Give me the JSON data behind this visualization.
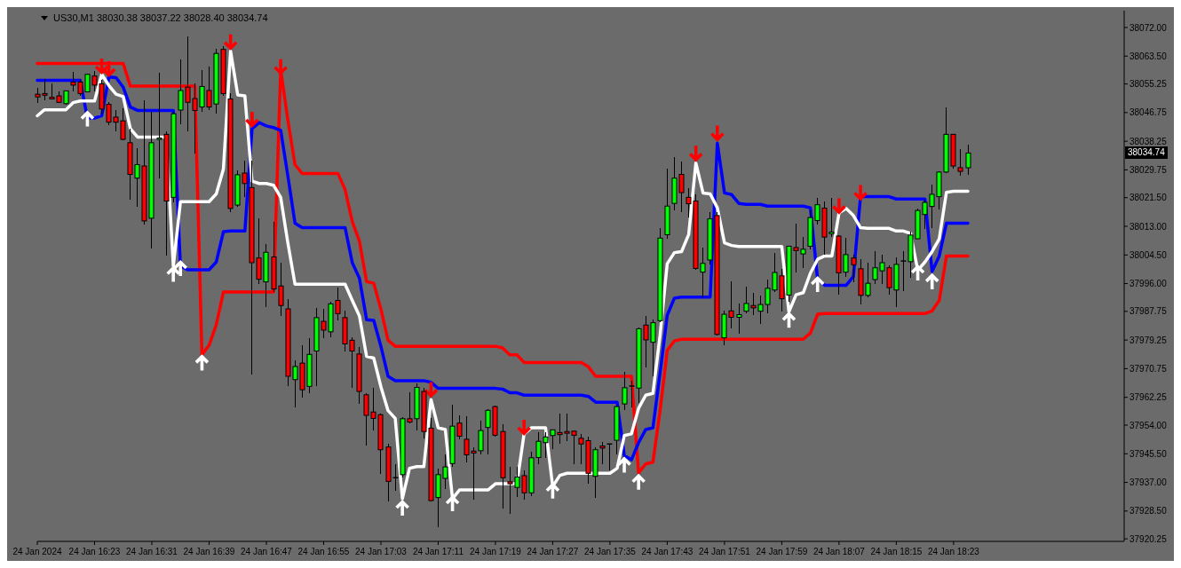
{
  "chart_data": {
    "type": "candlestick",
    "title": "US30,M1 38030.38 38037.22 38028.40 38034.74",
    "categories": [
      "24 Jan 2024",
      null,
      null,
      null,
      null,
      null,
      null,
      null,
      "24 Jan 16:23",
      null,
      null,
      null,
      null,
      null,
      null,
      null,
      "24 Jan 16:31",
      null,
      null,
      null,
      null,
      null,
      null,
      null,
      "24 Jan 16:39",
      null,
      null,
      null,
      null,
      null,
      null,
      null,
      "24 Jan 16:47",
      null,
      null,
      null,
      null,
      null,
      null,
      null,
      "24 Jan 16:55",
      null,
      null,
      null,
      null,
      null,
      null,
      null,
      "24 Jan 17:03",
      null,
      null,
      null,
      null,
      null,
      null,
      null,
      "24 Jan 17:11",
      null,
      null,
      null,
      null,
      null,
      null,
      null,
      "24 Jan 17:19",
      null,
      null,
      null,
      null,
      null,
      null,
      null,
      "24 Jan 17:27",
      null,
      null,
      null,
      null,
      null,
      null,
      null,
      "24 Jan 17:35",
      null,
      null,
      null,
      null,
      null,
      null,
      null,
      "24 Jan 17:43",
      null,
      null,
      null,
      null,
      null,
      null,
      null,
      "24 Jan 17:51",
      null,
      null,
      null,
      null,
      null,
      null,
      null,
      "24 Jan 17:59",
      null,
      null,
      null,
      null,
      null,
      null,
      null,
      "24 Jan 18:07",
      null,
      null,
      null,
      null,
      null,
      null,
      null,
      "24 Jan 18:15",
      null,
      null,
      null,
      null,
      null,
      null,
      null,
      "24 Jan 18:23",
      null,
      null
    ],
    "ohlc": [
      [
        38052.2,
        38054.2,
        38049.6,
        38051.4
      ],
      [
        38052.4,
        38056.8,
        38050.3,
        38051.9
      ],
      [
        38051.3,
        38055.4,
        38050.6,
        38050.8
      ],
      [
        38051.7,
        38053.0,
        38049.6,
        38049.8
      ],
      [
        38049.4,
        38053.4,
        38049.2,
        38053.2
      ],
      [
        38055.8,
        38058.8,
        38053.0,
        38054.9
      ],
      [
        38055.8,
        38056.8,
        38051.7,
        38052.4
      ],
      [
        38052.9,
        38058.3,
        38052.7,
        38058.1
      ],
      [
        38057.6,
        38059.0,
        38053.0,
        38054.9
      ],
      [
        38055.3,
        38056.4,
        38046.5,
        38047.8
      ],
      [
        38049.2,
        38050.0,
        38043.0,
        38043.9
      ],
      [
        38045.4,
        38047.5,
        38041.3,
        38043.9
      ],
      [
        38044.3,
        38047.9,
        38038.6,
        38038.8
      ],
      [
        38037.8,
        38042.0,
        38020.9,
        38028.4
      ],
      [
        38027.3,
        38036.3,
        38018.8,
        38031.3
      ],
      [
        38030.9,
        38050.3,
        38013.5,
        38014.6
      ],
      [
        38015.4,
        38047.1,
        38006.4,
        38037.8
      ],
      [
        38038.8,
        38058.6,
        38027.1,
        38039.2
      ],
      [
        38040.3,
        38041.1,
        38004.4,
        38020.5
      ],
      [
        38021.6,
        38047.0,
        38020.0,
        38046.4
      ],
      [
        38047.5,
        38062.4,
        38043.2,
        38053.3
      ],
      [
        38054.3,
        38069.4,
        38041.3,
        38049.8
      ],
      [
        38050.9,
        38055.5,
        38034.5,
        38047.4
      ],
      [
        38048.4,
        38059.4,
        38047.0,
        38054.5
      ],
      [
        38053.3,
        38060.4,
        38047.4,
        38048.4
      ],
      [
        38049.3,
        38065.8,
        38046.4,
        38064.3
      ],
      [
        38065.5,
        38066.5,
        38051.6,
        38052.4
      ],
      [
        38050.8,
        38052.6,
        38017.3,
        38018.3
      ],
      [
        38019.3,
        38029.6,
        38018.9,
        38028.3
      ],
      [
        38028.8,
        38032.5,
        38021.8,
        38025.7
      ],
      [
        38024.5,
        38032.5,
        37969.1,
        38002.2
      ],
      [
        38003.6,
        38015.4,
        37996.0,
        37997.3
      ],
      [
        37996.5,
        38007.6,
        37989.0,
        38005.3
      ],
      [
        38003.9,
        38014.4,
        37993.5,
        37994.4
      ],
      [
        37995.3,
        38002.2,
        37986.5,
        37989.5
      ],
      [
        37988.5,
        37991.5,
        37965.5,
        37968.5
      ],
      [
        37967.5,
        37973.3,
        37959.2,
        37971.4
      ],
      [
        37972.4,
        37977.8,
        37962.1,
        37964.5
      ],
      [
        37965.5,
        37979.7,
        37963.6,
        37975.0
      ],
      [
        37976.0,
        37988.7,
        37965.5,
        37985.9
      ],
      [
        37984.8,
        37988.5,
        37979.7,
        37982.2
      ],
      [
        37981.7,
        37990.7,
        37980.2,
        37990.0
      ],
      [
        37991.0,
        37994.9,
        37985.1,
        37987.1
      ],
      [
        37985.9,
        37988.0,
        37975.8,
        37978.1
      ],
      [
        37979.2,
        37980.0,
        37965.0,
        37976.0
      ],
      [
        37975.1,
        37977.3,
        37960.3,
        37964.0
      ],
      [
        37963.0,
        37963.5,
        37948.0,
        37956.9
      ],
      [
        37957.9,
        37965.0,
        37952.3,
        37956.0
      ],
      [
        37957.1,
        37957.5,
        37939.5,
        37946.7
      ],
      [
        37947.5,
        37948.4,
        37931.4,
        37937.3
      ],
      [
        37938.4,
        37942.5,
        37934.5,
        37938.4
      ],
      [
        37939.3,
        37956.5,
        37938.5,
        37955.9
      ],
      [
        37955.9,
        37963.7,
        37954.4,
        37954.9
      ],
      [
        37955.9,
        37966.3,
        37952.3,
        37965.2
      ],
      [
        37964.0,
        37965.0,
        37950.1,
        37952.1
      ],
      [
        37953.1,
        37956.0,
        37931.4,
        37931.6
      ],
      [
        37932.5,
        37941.2,
        37923.6,
        37939.3
      ],
      [
        37938.2,
        37945.2,
        37935.0,
        37941.6
      ],
      [
        37942.6,
        37960.1,
        37941.6,
        37953.7
      ],
      [
        37954.6,
        37957.0,
        37949.7,
        37950.7
      ],
      [
        37949.8,
        37956.7,
        37942.9,
        37945.2
      ],
      [
        37946.3,
        37947.5,
        37931.8,
        37945.7
      ],
      [
        37946.4,
        37955.2,
        37945.4,
        37952.4
      ],
      [
        37953.3,
        37958.7,
        37945.4,
        37958.4
      ],
      [
        37959.5,
        37959.8,
        37950.5,
        37951.0
      ],
      [
        37952.1,
        37954.2,
        37929.3,
        37938.4
      ],
      [
        37937.2,
        37941.6,
        37927.6,
        37936.6
      ],
      [
        37935.5,
        37941.6,
        37932.7,
        37938.6
      ],
      [
        37939.0,
        37940.7,
        37931.8,
        37933.9
      ],
      [
        37933.9,
        37946.0,
        37932.9,
        37944.3
      ],
      [
        37944.4,
        37951.9,
        37942.5,
        37949.2
      ],
      [
        37948.8,
        37951.9,
        37944.3,
        37950.5
      ],
      [
        37950.9,
        37952.8,
        37946.8,
        37952.6
      ],
      [
        37951.8,
        37957.4,
        37948.4,
        37951.2
      ],
      [
        37952.1,
        37957.4,
        37949.2,
        37951.6
      ],
      [
        37952.2,
        37952.5,
        37942.5,
        37951.0
      ],
      [
        37950.1,
        37951.4,
        37942.5,
        37948.4
      ],
      [
        37949.4,
        37950.7,
        37936.6,
        37939.7
      ],
      [
        37938.8,
        37947.5,
        37932.3,
        37946.7
      ],
      [
        37947.8,
        37949.1,
        37942.3,
        37947.2
      ],
      [
        37948.4,
        37948.6,
        37940.6,
        37948.4
      ],
      [
        37949.5,
        37959.7,
        37945.4,
        37959.5
      ],
      [
        37960.3,
        37969.8,
        37958.6,
        37965.1
      ],
      [
        37965.6,
        37967.1,
        37959.4,
        37965.6
      ],
      [
        37965.0,
        37983.0,
        37960.7,
        37982.6
      ],
      [
        37983.7,
        37986.3,
        37971.2,
        37979.3
      ],
      [
        37978.6,
        37985.3,
        37968.4,
        37984.4
      ],
      [
        37985.0,
        38012.6,
        37984.6,
        38009.5
      ],
      [
        38010.5,
        38030.2,
        38009.4,
        38019.0
      ],
      [
        38019.8,
        38033.5,
        38017.7,
        38027.3
      ],
      [
        38028.4,
        38032.2,
        38017.3,
        38023.0
      ],
      [
        38021.6,
        38024.3,
        38015.6,
        38019.7
      ],
      [
        38020.5,
        38022.6,
        38000.2,
        38000.5
      ],
      [
        37999.4,
        38006.7,
        37991.8,
        38002.0
      ],
      [
        38003.0,
        38017.1,
        38001.6,
        38015.2
      ],
      [
        38016.2,
        38017.3,
        37980.7,
        37980.9
      ],
      [
        37979.9,
        37987.9,
        37977.7,
        37986.9
      ],
      [
        37987.9,
        37996.7,
        37982.8,
        37986.0
      ],
      [
        37986.0,
        37990.1,
        37981.2,
        37986.8
      ],
      [
        37987.8,
        37995.2,
        37987.1,
        37990.1
      ],
      [
        37989.5,
        37993.2,
        37986.7,
        37988.8
      ],
      [
        37987.8,
        37992.4,
        37984.1,
        37989.8
      ],
      [
        37989.8,
        37997.3,
        37987.1,
        37994.6
      ],
      [
        37994.1,
        38005.2,
        37993.5,
        37999.3
      ],
      [
        37998.3,
        38000.3,
        37987.7,
        37991.5
      ],
      [
        37992.6,
        38007.3,
        37990.7,
        38007.1
      ],
      [
        38006.7,
        38013.9,
        37999.4,
        38005.8
      ],
      [
        38004.8,
        38009.9,
        38000.5,
        38006.2
      ],
      [
        38007.1,
        38017.7,
        38006.1,
        38015.6
      ],
      [
        38014.7,
        38021.4,
        38013.5,
        38019.4
      ],
      [
        38018.4,
        38020.3,
        38004.5,
        38009.8
      ],
      [
        38010.8,
        38021.4,
        38009.9,
        38011.3
      ],
      [
        38010.1,
        38010.3,
        37992.8,
        37999.2
      ],
      [
        37999.4,
        38009.5,
        37998.1,
        38004.6
      ],
      [
        38003.6,
        38004.7,
        37996.3,
        38001.6
      ],
      [
        38000.4,
        38003.3,
        37989.7,
        37992.5
      ],
      [
        37992.5,
        38002.3,
        37991.9,
        37996.1
      ],
      [
        37997.2,
        38005.5,
        37995.9,
        38000.7
      ],
      [
        37999.8,
        38004.7,
        37995.9,
        38002.2
      ],
      [
        38000.7,
        38001.3,
        37992.8,
        37994.8
      ],
      [
        37994.1,
        38003.9,
        37989.0,
        38001.7
      ],
      [
        38002.7,
        38005.5,
        37993.9,
        38002.7
      ],
      [
        38002.5,
        38011.5,
        37997.6,
        38010.4
      ],
      [
        38009.3,
        38018.3,
        38009.2,
        38017.7
      ],
      [
        38016.5,
        38020.9,
        38012.1,
        38020.1
      ],
      [
        38018.9,
        38025.3,
        38012.6,
        38022.5
      ],
      [
        38021.8,
        38029.3,
        38017.9,
        38029.1
      ],
      [
        38029.1,
        38048.2,
        38028.9,
        38040.3
      ],
      [
        38040.3,
        38040.4,
        38030.2,
        38030.9
      ],
      [
        38030.4,
        38035.9,
        38028.0,
        38029.3
      ],
      [
        38030.38,
        38037.22,
        38028.4,
        38034.74
      ]
    ],
    "colors": [
      "#ff0000",
      "#ff0000",
      "#ff0000",
      "#ff0000",
      "#00ff00",
      "#ff0000",
      "#ff0000",
      "#00ff00",
      "#ff0000",
      "#ff0000",
      "#ff0000",
      "#ff0000",
      "#ff0000",
      "#ff0000",
      "#00ff00",
      "#ff0000",
      "#00ff00",
      "#00ff00",
      "#ff0000",
      "#00ff00",
      "#00ff00",
      "#ff0000",
      "#ff0000",
      "#00ff00",
      "#ff0000",
      "#00ff00",
      "#ff0000",
      "#ff0000",
      "#00ff00",
      "#ff0000",
      "#ff0000",
      "#ff0000",
      "#00ff00",
      "#ff0000",
      "#ff0000",
      "#ff0000",
      "#00ff00",
      "#ff0000",
      "#00ff00",
      "#00ff00",
      "#ff0000",
      "#00ff00",
      "#ff0000",
      "#ff0000",
      "#ff0000",
      "#ff0000",
      "#ff0000",
      "#ff0000",
      "#ff0000",
      "#ff0000",
      "#000000",
      "#00ff00",
      "#ff0000",
      "#00ff00",
      "#ff0000",
      "#ff0000",
      "#00ff00",
      "#00ff00",
      "#00ff00",
      "#ff0000",
      "#ff0000",
      "#ff0000",
      "#00ff00",
      "#00ff00",
      "#ff0000",
      "#ff0000",
      "#ff0000",
      "#00ff00",
      "#ff0000",
      "#00ff00",
      "#00ff00",
      "#00ff00",
      "#00ff00",
      "#ff0000",
      "#ff0000",
      "#ff0000",
      "#ff0000",
      "#ff0000",
      "#00ff00",
      "#ff0000",
      "#000000",
      "#00ff00",
      "#00ff00",
      "#000000",
      "#00ff00",
      "#ff0000",
      "#00ff00",
      "#00ff00",
      "#00ff00",
      "#00ff00",
      "#ff0000",
      "#ff0000",
      "#ff0000",
      "#00ff00",
      "#00ff00",
      "#ff0000",
      "#00ff00",
      "#ff0000",
      "#00ff00",
      "#00ff00",
      "#ff0000",
      "#00ff00",
      "#00ff00",
      "#00ff00",
      "#ff0000",
      "#00ff00",
      "#ff0000",
      "#00ff00",
      "#00ff00",
      "#00ff00",
      "#ff0000",
      "#00ff00",
      "#ff0000",
      "#00ff00",
      "#ff0000",
      "#ff0000",
      "#00ff00",
      "#00ff00",
      "#00ff00",
      "#ff0000",
      "#00ff00",
      "#000000",
      "#00ff00",
      "#00ff00",
      "#00ff00",
      "#00ff00",
      "#00ff00",
      "#00ff00",
      "#ff0000",
      "#ff0000",
      "#00ff00"
    ],
    "series": [
      {
        "type": "line",
        "color": "#ff0000",
        "values": [
          38061.3,
          38061.3,
          38061.3,
          38061.3,
          38061.3,
          38061.3,
          38061.3,
          38061.3,
          38061.3,
          38061.3,
          38061.3,
          38061.3,
          38061.3,
          38054.6,
          38054.6,
          38054.6,
          38054.6,
          38054.6,
          38054.6,
          38054.6,
          38054.6,
          38054.6,
          38054.6,
          37974.9,
          37977.7,
          37983.8,
          37993.5,
          37993.5,
          37993.5,
          37993.5,
          37993.5,
          37993.5,
          37993.5,
          37993.5,
          38059.4,
          38044.6,
          38031.3,
          38028.7,
          38028.7,
          38028.7,
          38028.7,
          38028.7,
          38028.7,
          38023.9,
          38014.4,
          38008.6,
          37996.6,
          37996.1,
          37988.4,
          37979.2,
          37977.4,
          37977.4,
          37977.4,
          37977.4,
          37977.4,
          37977.4,
          37977.4,
          37977.4,
          37977.4,
          37977.4,
          37977.4,
          37977.4,
          37977.4,
          37977.4,
          37977.4,
          37976.9,
          37974.9,
          37974.9,
          37972.6,
          37972.6,
          37972.6,
          37972.6,
          37972.6,
          37972.6,
          37972.6,
          37972.6,
          37972.6,
          37971.3,
          37968.5,
          37968.5,
          37968.5,
          37968.5,
          37968.5,
          37968.5,
          37939.9,
          37942.5,
          37943.0,
          37958.3,
          37976.2,
          37979.0,
          37979.5,
          37979.5,
          37979.5,
          37979.5,
          37979.5,
          37979.5,
          37979.5,
          37979.5,
          37979.5,
          37979.5,
          37979.5,
          37979.5,
          37979.5,
          37979.5,
          37979.5,
          37979.5,
          37979.5,
          37979.5,
          37981.3,
          37986.9,
          37987.1,
          37987.1,
          37987.1,
          37987.1,
          37987.1,
          37987.1,
          37987.1,
          37987.1,
          37987.1,
          37987.1,
          37987.1,
          37987.1,
          37987.1,
          37987.1,
          37987.1,
          37987.9,
          37991.0,
          38004.2,
          38004.2,
          38004.2,
          38004.2
        ]
      },
      {
        "type": "line",
        "color": "#0000ff",
        "values": [
          38056.3,
          38056.3,
          38056.3,
          38056.3,
          38056.3,
          38056.3,
          38056.3,
          38045.1,
          38045.1,
          38045.8,
          38057.3,
          38057.1,
          38054.3,
          38048.4,
          38047.4,
          38047.4,
          38047.4,
          38047.4,
          38047.4,
          38047.4,
          38001.2,
          38000.1,
          38000.1,
          38000.1,
          38000.1,
          38002.4,
          38011.4,
          38011.6,
          38011.6,
          38011.6,
          38042.0,
          38043.8,
          38042.8,
          38042.3,
          38041.5,
          38028.0,
          38013.9,
          38012.6,
          38012.6,
          38012.6,
          38012.6,
          38012.6,
          38012.6,
          38012.6,
          38002.2,
          37997.6,
          37985.3,
          37985.1,
          37977.4,
          37968.5,
          37967.2,
          37967.2,
          37967.2,
          37967.2,
          37967.2,
          37966.7,
          37964.9,
          37964.9,
          37964.9,
          37964.9,
          37964.9,
          37964.9,
          37964.9,
          37964.9,
          37964.9,
          37964.7,
          37963.6,
          37963.6,
          37962.9,
          37962.9,
          37962.9,
          37962.9,
          37962.9,
          37962.9,
          37962.9,
          37962.9,
          37962.9,
          37962.5,
          37960.8,
          37960.8,
          37960.8,
          37960.8,
          37945.0,
          37943.7,
          37948.8,
          37952.7,
          37953.2,
          37969.5,
          37986.6,
          37991.7,
          37992.0,
          37992.0,
          37992.0,
          37992.0,
          37992.0,
          38037.7,
          38022.9,
          38022.4,
          38019.8,
          38019.5,
          38019.5,
          38019.5,
          38019.0,
          38019.0,
          38019.0,
          38019.0,
          38019.0,
          38019.0,
          38018.5,
          37997.3,
          37995.5,
          37995.5,
          37995.5,
          37995.5,
          37998.1,
          38021.8,
          38021.8,
          38021.8,
          38021.8,
          38021.8,
          38021.1,
          38021.1,
          38021.1,
          38021.1,
          38021.1,
          37999.6,
          38004.2,
          38013.9,
          38013.9,
          38013.9,
          38013.9
        ]
      },
      {
        "type": "line",
        "color": "#ffffff",
        "values": [
          38045.8,
          38047.6,
          38047.6,
          38047.6,
          38047.6,
          38049.7,
          38050.2,
          38050.2,
          38050.2,
          38058.1,
          38054.8,
          38052.2,
          38051.5,
          38042.0,
          38039.5,
          38039.5,
          38039.5,
          38039.5,
          38039.5,
          38001.2,
          38020.3,
          38020.3,
          38020.3,
          38020.3,
          38020.3,
          38022.6,
          38030.0,
          38065.0,
          38052.0,
          38051.7,
          38026.4,
          38025.7,
          38025.7,
          38025.2,
          38021.6,
          38008.1,
          37995.8,
          37995.8,
          37995.8,
          37995.8,
          37995.8,
          37995.8,
          37995.8,
          37995.8,
          37991.0,
          37986.4,
          37974.4,
          37973.9,
          37965.4,
          37958.3,
          37956.0,
          37932.2,
          37941.2,
          37941.7,
          37941.7,
          37961.6,
          37953.2,
          37952.7,
          37932.2,
          37934.8,
          37934.8,
          37934.8,
          37934.8,
          37934.8,
          37936.6,
          37936.6,
          37936.6,
          37936.6,
          37951.4,
          37953.2,
          37953.2,
          37953.2,
          37935.8,
          37939.1,
          37939.7,
          37939.7,
          37939.7,
          37939.7,
          37939.7,
          37939.7,
          37939.7,
          37941.2,
          37950.9,
          37951.4,
          37959.0,
          37962.9,
          37963.4,
          37980.7,
          38001.9,
          38005.2,
          38005.5,
          38010.6,
          38031.8,
          38022.9,
          38022.6,
          38018.5,
          38008.1,
          38007.3,
          38007.0,
          38007.0,
          38007.0,
          38007.0,
          38007.0,
          38007.0,
          38007.0,
          37987.6,
          37992.7,
          37993.3,
          37999.1,
          38003.2,
          38004.2,
          38004.2,
          38017.0,
          38018.3,
          38016.2,
          38012.6,
          38012.4,
          38012.4,
          38012.4,
          38012.4,
          38011.6,
          38011.6,
          38010.9,
          37999.9,
          38002.4,
          38005.5,
          38009.3,
          38023.1,
          38023.4,
          38023.4,
          38023.4
        ]
      },
      {
        "type": "scatter",
        "color": "#ff0000",
        "values": [
          null,
          null,
          null,
          null,
          null,
          null,
          null,
          null,
          null,
          38060.4,
          38059.6,
          null,
          null,
          null,
          null,
          null,
          null,
          null,
          null,
          null,
          null,
          null,
          null,
          null,
          null,
          null,
          null,
          38067.6,
          null,
          null,
          38044.6,
          null,
          null,
          null,
          38060.2,
          null,
          null,
          null,
          null,
          null,
          null,
          null,
          null,
          null,
          null,
          null,
          null,
          null,
          null,
          null,
          null,
          null,
          null,
          null,
          null,
          37964.4,
          null,
          null,
          null,
          null,
          null,
          null,
          null,
          null,
          null,
          null,
          null,
          null,
          37953.2,
          null,
          null,
          null,
          null,
          null,
          null,
          null,
          null,
          null,
          null,
          null,
          null,
          null,
          null,
          null,
          null,
          null,
          null,
          null,
          null,
          null,
          null,
          null,
          38034.5,
          null,
          null,
          38040.5,
          null,
          null,
          null,
          null,
          null,
          null,
          null,
          null,
          null,
          null,
          null,
          null,
          null,
          null,
          null,
          null,
          38018.9,
          null,
          null,
          38022.9,
          null,
          null,
          null,
          null,
          null,
          null,
          null,
          null,
          null,
          null,
          null,
          null,
          null,
          null,
          null
        ]
      },
      {
        "type": "scatter",
        "color": "#ffffff",
        "values": [
          null,
          null,
          null,
          null,
          null,
          null,
          null,
          38045.0,
          null,
          null,
          null,
          null,
          null,
          null,
          null,
          null,
          null,
          null,
          null,
          37998.9,
          38000.6,
          null,
          null,
          37972.6,
          null,
          null,
          null,
          null,
          null,
          null,
          null,
          null,
          null,
          null,
          null,
          null,
          null,
          null,
          null,
          null,
          null,
          null,
          null,
          null,
          null,
          null,
          null,
          null,
          null,
          null,
          null,
          37929.5,
          null,
          null,
          null,
          null,
          null,
          null,
          37930.8,
          null,
          null,
          null,
          null,
          null,
          null,
          null,
          null,
          null,
          null,
          null,
          null,
          null,
          37934.6,
          null,
          null,
          null,
          null,
          null,
          null,
          null,
          null,
          null,
          37942.3,
          null,
          37937.2,
          null,
          null,
          null,
          null,
          null,
          null,
          null,
          null,
          null,
          null,
          null,
          null,
          null,
          null,
          null,
          null,
          null,
          null,
          null,
          null,
          37985.3,
          null,
          null,
          null,
          37995.9,
          null,
          null,
          null,
          null,
          null,
          null,
          null,
          null,
          null,
          null,
          null,
          null,
          null,
          37999.3,
          null,
          37996.7,
          null,
          null,
          null,
          null,
          null
        ]
      }
    ],
    "ylim": [
      37919.5,
      38077
    ],
    "yticks": [
      37920.25,
      {
        "value": 37928.5,
        "label": "37928.50"
      },
      {
        "value": 37937,
        "label": "37937.00"
      },
      {
        "value": 37945.5,
        "label": "37945.50"
      },
      {
        "value": 37954,
        "label": "37954.00"
      },
      37962.25,
      37970.75,
      37979.25,
      37987.75,
      {
        "value": 37996,
        "label": "37996.00"
      },
      {
        "value": 38004.5,
        "label": "38004.50"
      },
      {
        "value": 38013,
        "label": "38013.00"
      },
      {
        "value": 38021.5,
        "label": "38021.50"
      },
      38029.75,
      38038.25,
      38046.75,
      38055.25,
      {
        "value": 38063.5,
        "label": "38063.50"
      },
      {
        "value": 38072,
        "label": "38072.00"
      }
    ],
    "annotations": [
      "38034.74"
    ]
  }
}
